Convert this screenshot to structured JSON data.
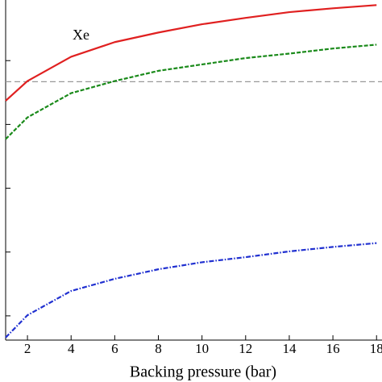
{
  "chart_data": {
    "type": "line",
    "xlabel": "Backing pressure (bar)",
    "annotation": "Xe",
    "x": [
      1,
      2,
      4,
      6,
      8,
      10,
      12,
      14,
      16,
      18
    ],
    "series": [
      {
        "color": "#e02020",
        "dash": "solid",
        "values": [
          4.37,
          4.68,
          5.06,
          5.29,
          5.44,
          5.57,
          5.67,
          5.76,
          5.82,
          5.87
        ]
      },
      {
        "color": "#1a8a1a",
        "dash": "dashed",
        "values": [
          3.77,
          4.11,
          4.49,
          4.68,
          4.84,
          4.94,
          5.04,
          5.11,
          5.19,
          5.25
        ]
      },
      {
        "color": "#2030d0",
        "dash": "dashdot",
        "values": [
          0.66,
          1.01,
          1.39,
          1.58,
          1.73,
          1.84,
          1.92,
          2.01,
          2.08,
          2.14
        ]
      }
    ],
    "hline": {
      "value": 4.67,
      "color": "#999999"
    },
    "xlim": [
      1,
      18.25
    ],
    "xticks": [
      2,
      4,
      6,
      8,
      10,
      12,
      14,
      16,
      18
    ],
    "ylim": [
      0.62,
      5.95
    ],
    "yticks": [
      1,
      2,
      3,
      4,
      5
    ]
  }
}
